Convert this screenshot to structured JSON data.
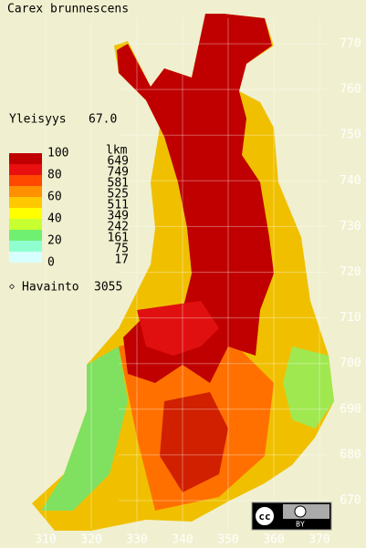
{
  "title": "Carex brunnescens",
  "frequency": {
    "label": "Yleisyys",
    "value": "67.0"
  },
  "legend": {
    "scale_labels": [
      "100",
      "80",
      "60",
      "40",
      "20",
      "0"
    ],
    "count_header": "lkm",
    "counts": [
      "649",
      "749",
      "581",
      "525",
      "511",
      "349",
      "242",
      "161",
      "75",
      "17"
    ],
    "colors": [
      "#c00000",
      "#e81010",
      "#ff4800",
      "#ff9000",
      "#ffc800",
      "#ffff00",
      "#c8ff30",
      "#70f070",
      "#90ffd0",
      "#d8ffff"
    ]
  },
  "observations": {
    "marker": "◇",
    "label": "Havainto",
    "count": "3055"
  },
  "grid": {
    "north": [
      770,
      760,
      750,
      740,
      730,
      720,
      710,
      700,
      690,
      680,
      670
    ],
    "east": [
      310,
      320,
      330,
      340,
      350,
      360,
      370
    ]
  },
  "license": {
    "cc": "cc",
    "by": "BY"
  }
}
